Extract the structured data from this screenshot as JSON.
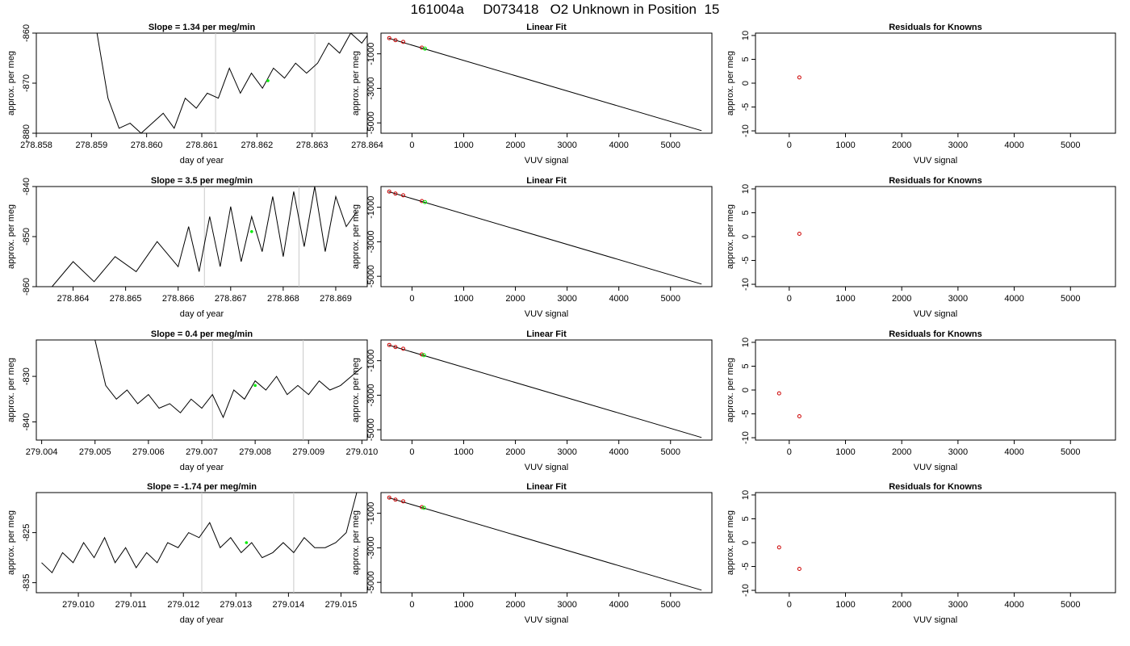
{
  "page": {
    "title": "161004a     D073418   O2 Unknown in Position  15"
  },
  "colors": {
    "line": "#000000",
    "vline": "#c8c8c8",
    "highlight": "#00ee00",
    "known": "#cc0000"
  },
  "chart_data": [
    {
      "type": "line",
      "title": "Slope =  1.34  per meg/min",
      "xlabel": "day of year",
      "ylabel": "approx. per meg",
      "xlim": [
        278.858,
        278.864
      ],
      "ylim": [
        -880,
        -860
      ],
      "xticks": [
        "278.858",
        "278.859",
        "278.860",
        "278.861",
        "278.862",
        "278.863",
        "278.864"
      ],
      "yticks": [
        "-880",
        "-870",
        "-860"
      ],
      "vlines": [
        278.86125,
        278.86305
      ],
      "highlight": {
        "x": 278.8622,
        "y": -869.5
      },
      "x": [
        278.8591,
        278.8593,
        278.8595,
        278.8597,
        278.8599,
        278.8601,
        278.8603,
        278.8605,
        278.8607,
        278.8609,
        278.8611,
        278.8613,
        278.8615,
        278.8617,
        278.8619,
        278.8621,
        278.8623,
        278.8625,
        278.8627,
        278.8629,
        278.8631,
        278.8633,
        278.8635,
        278.8637,
        278.8639,
        278.8641,
        278.8642
      ],
      "y": [
        -860,
        -873,
        -879,
        -878,
        -880,
        -878,
        -876,
        -879,
        -873,
        -875,
        -872,
        -873,
        -867,
        -872,
        -868,
        -871,
        -867,
        -869,
        -866,
        -868,
        -866,
        -862,
        -864,
        -860,
        -862,
        -859,
        -862
      ]
    },
    {
      "type": "line",
      "title": "Linear Fit",
      "xlabel": "VUV signal",
      "ylabel": "approx. per meg",
      "xlim": [
        -600,
        5800
      ],
      "ylim": [
        -5600,
        200
      ],
      "xticks": [
        "0",
        "1000",
        "2000",
        "3000",
        "4000",
        "5000"
      ],
      "yticks": [
        "-5000",
        "-3000",
        "-1000"
      ],
      "line": {
        "x": [
          -450,
          5600
        ],
        "y": [
          -100,
          -5450
        ]
      },
      "knowns": [
        {
          "x": -440,
          "y": -90
        },
        {
          "x": -320,
          "y": -210
        },
        {
          "x": -170,
          "y": -310
        },
        {
          "x": 190,
          "y": -640
        }
      ],
      "unknown": [
        {
          "x": 250,
          "y": -700
        }
      ]
    },
    {
      "type": "scatter",
      "title": "Residuals for Knowns",
      "xlabel": "VUV signal",
      "ylabel": "approx. per meg",
      "xlim": [
        -600,
        5800
      ],
      "ylim": [
        -10.5,
        10.5
      ],
      "xticks": [
        "0",
        "1000",
        "2000",
        "3000",
        "4000",
        "5000"
      ],
      "yticks": [
        "-10",
        "-5",
        "0",
        "5",
        "10"
      ],
      "points": [
        {
          "x": 180,
          "y": 1.2
        }
      ]
    },
    {
      "type": "line",
      "title": "Slope =  3.5  per meg/min",
      "xlabel": "day of year",
      "ylabel": "approx. per meg",
      "xlim": [
        278.8633,
        278.8696
      ],
      "ylim": [
        -860,
        -840
      ],
      "xticks": [
        "278.864",
        "278.865",
        "278.866",
        "278.867",
        "278.868",
        "278.869"
      ],
      "yticks": [
        "-860",
        "-850",
        "-840"
      ],
      "vlines": [
        278.8665,
        278.8683
      ],
      "highlight": {
        "x": 278.8674,
        "y": -849
      },
      "x": [
        278.8636,
        278.864,
        278.8644,
        278.8648,
        278.8652,
        278.8656,
        278.866,
        278.8662,
        278.8664,
        278.8666,
        278.8668,
        278.867,
        278.8672,
        278.8674,
        278.8676,
        278.8678,
        278.868,
        278.8682,
        278.8684,
        278.8686,
        278.8688,
        278.869,
        278.8692,
        278.8694
      ],
      "y": [
        -860,
        -855,
        -859,
        -854,
        -857,
        -851,
        -856,
        -848,
        -857,
        -846,
        -856,
        -844,
        -855,
        -846,
        -853,
        -842,
        -854,
        -841,
        -852,
        -840,
        -853,
        -842,
        -848,
        -845
      ]
    },
    {
      "type": "line",
      "title": "Linear Fit",
      "xlabel": "VUV signal",
      "ylabel": "approx. per meg",
      "xlim": [
        -600,
        5800
      ],
      "ylim": [
        -5600,
        200
      ],
      "xticks": [
        "0",
        "1000",
        "2000",
        "3000",
        "4000",
        "5000"
      ],
      "yticks": [
        "-5000",
        "-3000",
        "-1000"
      ],
      "line": {
        "x": [
          -450,
          5600
        ],
        "y": [
          -100,
          -5450
        ]
      },
      "knowns": [
        {
          "x": -440,
          "y": -90
        },
        {
          "x": -320,
          "y": -210
        },
        {
          "x": -170,
          "y": -310
        },
        {
          "x": 190,
          "y": -640
        }
      ],
      "unknown": [
        {
          "x": 250,
          "y": -700
        }
      ]
    },
    {
      "type": "scatter",
      "title": "Residuals for Knowns",
      "xlabel": "VUV signal",
      "ylabel": "approx. per meg",
      "xlim": [
        -600,
        5800
      ],
      "ylim": [
        -10.5,
        10.5
      ],
      "xticks": [
        "0",
        "1000",
        "2000",
        "3000",
        "4000",
        "5000"
      ],
      "yticks": [
        "-10",
        "-5",
        "0",
        "5",
        "10"
      ],
      "points": [
        {
          "x": 180,
          "y": 0.6
        }
      ]
    },
    {
      "type": "line",
      "title": "Slope =  0.4  per meg/min",
      "xlabel": "day of year",
      "ylabel": "approx. per meg",
      "xlim": [
        279.0039,
        279.0101
      ],
      "ylim": [
        -844,
        -822
      ],
      "xticks": [
        "279.004",
        "279.005",
        "279.006",
        "279.007",
        "279.008",
        "279.009",
        "279.010"
      ],
      "yticks": [
        "-840",
        "-830"
      ],
      "vlines": [
        279.0072,
        279.0089
      ],
      "highlight": {
        "x": 279.008,
        "y": -832
      },
      "x": [
        279.005,
        279.0052,
        279.0054,
        279.0056,
        279.0058,
        279.006,
        279.0062,
        279.0064,
        279.0066,
        279.0068,
        279.007,
        279.0072,
        279.0074,
        279.0076,
        279.0078,
        279.008,
        279.0082,
        279.0084,
        279.0086,
        279.0088,
        279.009,
        279.0092,
        279.0094,
        279.0096,
        279.0098,
        279.01
      ],
      "y": [
        -822,
        -832,
        -835,
        -833,
        -836,
        -834,
        -837,
        -836,
        -838,
        -835,
        -837,
        -834,
        -839,
        -833,
        -835,
        -831,
        -833,
        -830,
        -834,
        -832,
        -834,
        -831,
        -833,
        -832,
        -830,
        -828
      ]
    },
    {
      "type": "line",
      "title": "Linear Fit",
      "xlabel": "VUV signal",
      "ylabel": "approx. per meg",
      "xlim": [
        -600,
        5800
      ],
      "ylim": [
        -5600,
        200
      ],
      "xticks": [
        "0",
        "1000",
        "2000",
        "3000",
        "4000",
        "5000"
      ],
      "yticks": [
        "-5000",
        "-3000",
        "-1000"
      ],
      "line": {
        "x": [
          -450,
          5600
        ],
        "y": [
          -100,
          -5450
        ]
      },
      "knowns": [
        {
          "x": -440,
          "y": -90
        },
        {
          "x": -320,
          "y": -210
        },
        {
          "x": -170,
          "y": -310
        },
        {
          "x": 190,
          "y": -640
        }
      ],
      "unknown": [
        {
          "x": 230,
          "y": -680
        }
      ]
    },
    {
      "type": "scatter",
      "title": "Residuals for Knowns",
      "xlabel": "VUV signal",
      "ylabel": "approx. per meg",
      "xlim": [
        -600,
        5800
      ],
      "ylim": [
        -10.5,
        10.5
      ],
      "xticks": [
        "0",
        "1000",
        "2000",
        "3000",
        "4000",
        "5000"
      ],
      "yticks": [
        "-10",
        "-5",
        "0",
        "5",
        "10"
      ],
      "points": [
        {
          "x": -180,
          "y": -0.7
        },
        {
          "x": 180,
          "y": -5.5
        }
      ]
    },
    {
      "type": "line",
      "title": "Slope =  -1.74  per meg/min",
      "xlabel": "day of year",
      "ylabel": "approx. per meg",
      "xlim": [
        279.0092,
        279.0155
      ],
      "ylim": [
        -837,
        -817
      ],
      "xticks": [
        "279.010",
        "279.011",
        "279.012",
        "279.013",
        "279.014",
        "279.015"
      ],
      "yticks": [
        "-835",
        "-825"
      ],
      "vlines": [
        279.01235,
        279.0141
      ],
      "highlight": {
        "x": 279.0132,
        "y": -827
      },
      "x": [
        279.0093,
        279.0095,
        279.0097,
        279.0099,
        279.0101,
        279.0103,
        279.0105,
        279.0107,
        279.0109,
        279.0111,
        279.0113,
        279.0115,
        279.0117,
        279.0119,
        279.0121,
        279.0123,
        279.0125,
        279.0127,
        279.0129,
        279.0131,
        279.0133,
        279.0135,
        279.0137,
        279.0139,
        279.0141,
        279.0143,
        279.0145,
        279.0147,
        279.0149,
        279.0151,
        279.0153
      ],
      "y": [
        -831,
        -833,
        -829,
        -831,
        -827,
        -830,
        -826,
        -831,
        -828,
        -832,
        -829,
        -831,
        -827,
        -828,
        -825,
        -826,
        -823,
        -828,
        -826,
        -829,
        -827,
        -830,
        -829,
        -827,
        -829,
        -826,
        -828,
        -828,
        -827,
        -825,
        -817
      ]
    },
    {
      "type": "line",
      "title": "Linear Fit",
      "xlabel": "VUV signal",
      "ylabel": "approx. per meg",
      "xlim": [
        -600,
        5800
      ],
      "ylim": [
        -5600,
        200
      ],
      "xticks": [
        "0",
        "1000",
        "2000",
        "3000",
        "4000",
        "5000"
      ],
      "yticks": [
        "-5000",
        "-3000",
        "-1000"
      ],
      "line": {
        "x": [
          -450,
          5600
        ],
        "y": [
          -100,
          -5450
        ]
      },
      "knowns": [
        {
          "x": -440,
          "y": -90
        },
        {
          "x": -320,
          "y": -210
        },
        {
          "x": -170,
          "y": -310
        },
        {
          "x": 190,
          "y": -640
        }
      ],
      "unknown": [
        {
          "x": 230,
          "y": -680
        }
      ]
    },
    {
      "type": "scatter",
      "title": "Residuals for Knowns",
      "xlabel": "VUV signal",
      "ylabel": "approx. per meg",
      "xlim": [
        -600,
        5800
      ],
      "ylim": [
        -10.5,
        10.5
      ],
      "xticks": [
        "0",
        "1000",
        "2000",
        "3000",
        "4000",
        "5000"
      ],
      "yticks": [
        "-10",
        "-5",
        "0",
        "5",
        "10"
      ],
      "points": [
        {
          "x": -180,
          "y": -1.0
        },
        {
          "x": 180,
          "y": -5.5
        }
      ]
    }
  ]
}
